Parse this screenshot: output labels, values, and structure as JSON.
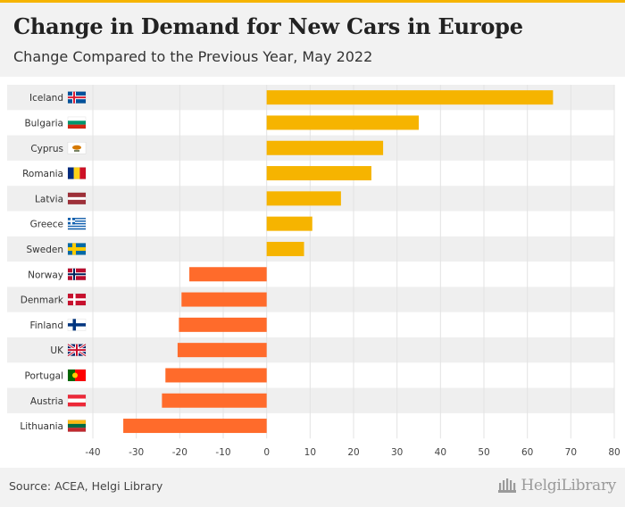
{
  "header": {
    "title": "Change in Demand for New Cars in Europe",
    "subtitle": "Change Compared to the Previous Year, May 2022"
  },
  "footer": {
    "source": "Source: ACEA, Helgi Library",
    "brand": "HelgiLibrary"
  },
  "colors": {
    "positive": "#f6b400",
    "negative": "#ff6b2b",
    "header_bg": "#f2f2f2",
    "stripe": "#efefef",
    "grid": "#e3e3e3"
  },
  "chart_data": {
    "type": "bar",
    "orientation": "horizontal",
    "categories": [
      "Iceland",
      "Bulgaria",
      "Cyprus",
      "Romania",
      "Latvia",
      "Greece",
      "Sweden",
      "Norway",
      "Denmark",
      "Finland",
      "UK",
      "Portugal",
      "Austria",
      "Lithuania"
    ],
    "flags": [
      "iceland-flag-icon",
      "bulgaria-flag-icon",
      "cyprus-flag-icon",
      "romania-flag-icon",
      "latvia-flag-icon",
      "greece-flag-icon",
      "sweden-flag-icon",
      "norway-flag-icon",
      "denmark-flag-icon",
      "finland-flag-icon",
      "uk-flag-icon",
      "portugal-flag-icon",
      "austria-flag-icon",
      "lithuania-flag-icon"
    ],
    "values": [
      65.9,
      35.0,
      26.8,
      24.1,
      17.1,
      10.5,
      8.6,
      -17.8,
      -19.6,
      -20.2,
      -20.5,
      -23.3,
      -24.1,
      -33.0
    ],
    "xlim": [
      -40,
      80
    ],
    "xticks": [
      -40,
      -30,
      -20,
      -10,
      0,
      10,
      20,
      30,
      40,
      50,
      60,
      70,
      80
    ],
    "grid": true,
    "legend": "none"
  }
}
